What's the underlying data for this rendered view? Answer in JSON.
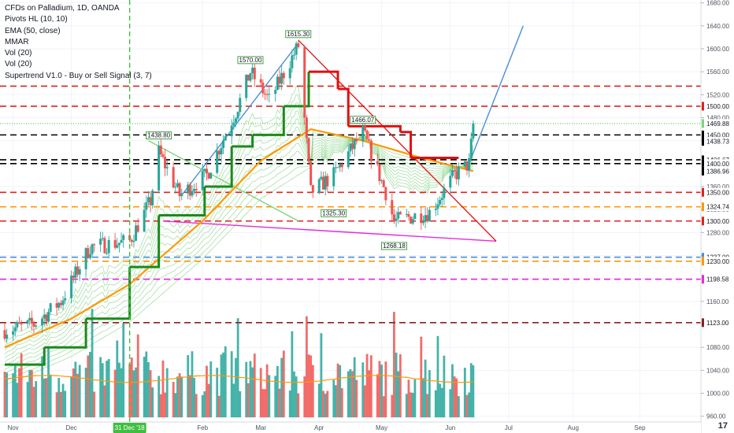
{
  "legend": {
    "symbol": "CFDs on Palladium, 1D, OANDA",
    "indicators": [
      "Pivots HL (10, 10)",
      "EMA (50, close)",
      "MMAR",
      "Vol (20)",
      "Vol (20)",
      "Supertrend V1.0 - Buy or Sell Signal (3, 7)"
    ]
  },
  "colors": {
    "up": "#26a69a",
    "down": "#ef5350",
    "ema": "#ff9800",
    "supertrend_up": "#1b8a1b",
    "supertrend_down": "#e01010",
    "ribbon": "#8bd48b",
    "support": "#e62b7e",
    "trend_blue": "#4a8fd8",
    "green_line": "#5cd05c",
    "axis": "#50535e"
  },
  "chart_data": {
    "type": "candlestick",
    "title": "CFDs on Palladium, 1D, OANDA",
    "y_axis": {
      "range": [
        950,
        1685
      ],
      "ticks": [
        960,
        1000,
        1040,
        1080,
        1120,
        1160,
        1200,
        1240,
        1280,
        1320,
        1360,
        1400,
        1440,
        1480,
        1520,
        1560,
        1600,
        1640,
        1680
      ]
    },
    "x_axis": {
      "start_date": "2018-11-01",
      "end_date": "2019-09-20",
      "labels": [
        {
          "date": "2018-11-05",
          "text": "Nov"
        },
        {
          "date": "2018-12-03",
          "text": "Dec"
        },
        {
          "date": "2019-02-04",
          "text": "Feb"
        },
        {
          "date": "2019-03-04",
          "text": "Mar"
        },
        {
          "date": "2019-04-01",
          "text": "Apr"
        },
        {
          "date": "2019-05-01",
          "text": "May"
        },
        {
          "date": "2019-06-03",
          "text": "Jun"
        },
        {
          "date": "2019-07-01",
          "text": "Jul"
        },
        {
          "date": "2019-08-01",
          "text": "Aug"
        },
        {
          "date": "2019-09-02",
          "text": "Sep"
        }
      ],
      "highlight": {
        "date": "2018-12-31",
        "text": "31 Dec '18"
      }
    },
    "horizontal_levels": [
      {
        "price": 1500.0,
        "label": "1500.00",
        "color": "#e02020",
        "style": "dashed"
      },
      {
        "price": 1469.88,
        "label": "1469.88",
        "color": "#7bd67b",
        "style": "dotted"
      },
      {
        "price": 1450.0,
        "label": "1450.00",
        "color": "#000000",
        "style": "dashed"
      },
      {
        "price": 1438.73,
        "label": "1438.73",
        "color": "#000000",
        "style": "none"
      },
      {
        "price": 1406.67,
        "label": "1406.67",
        "color": "#000000",
        "style": "dashed"
      },
      {
        "price": 1400.0,
        "label": "1400.00",
        "color": "#000000",
        "style": "dashed"
      },
      {
        "price": 1386.96,
        "label": "1386.96",
        "color": "#000000",
        "style": "none"
      },
      {
        "price": 1350.0,
        "label": "1350.00",
        "color": "#e02020",
        "style": "dashed"
      },
      {
        "price": 1324.74,
        "label": "1324.74",
        "color": "#ff9800",
        "style": "dashed"
      },
      {
        "price": 1300.0,
        "label": "1300.00",
        "color": "#e02020",
        "style": "dashed"
      },
      {
        "price": 1237.0,
        "label": "1237.00",
        "color": "#4a8fd8",
        "style": "dashed"
      },
      {
        "price": 1230.0,
        "label": "1230.00",
        "color": "#ff9800",
        "style": "dashed"
      },
      {
        "price": 1198.58,
        "label": "1198.58",
        "color": "#e62bd9",
        "style": "dashed"
      },
      {
        "price": 1123.0,
        "label": "1123.00",
        "color": "#8b2020",
        "style": "dashed"
      },
      {
        "price": 1535.0,
        "label": "",
        "color": "#e02020",
        "style": "dashed"
      }
    ],
    "pivot_labels": [
      {
        "date": "2019-03-22",
        "price": 1615.3,
        "text": "1615.30",
        "side": "high"
      },
      {
        "date": "2019-02-27",
        "price": 1570.0,
        "text": "1570.00",
        "side": "high"
      },
      {
        "date": "2019-01-14",
        "price": 1438.8,
        "text": "1438.80",
        "side": "high"
      },
      {
        "date": "2019-04-22",
        "price": 1466.07,
        "text": "1466.07",
        "side": "high"
      },
      {
        "date": "2019-04-08",
        "price": 1325.3,
        "text": "1325.30",
        "side": "low"
      },
      {
        "date": "2019-05-07",
        "price": 1268.18,
        "text": "1268.18",
        "side": "low"
      }
    ],
    "ohlc_anchors": [
      {
        "date": "2018-11-01",
        "close": 1110
      },
      {
        "date": "2018-11-15",
        "close": 1120
      },
      {
        "date": "2018-11-28",
        "close": 1160
      },
      {
        "date": "2018-12-12",
        "close": 1255
      },
      {
        "date": "2018-12-31",
        "close": 1265
      },
      {
        "date": "2019-01-10",
        "close": 1335
      },
      {
        "date": "2019-01-14",
        "close": 1420
      },
      {
        "date": "2019-01-24",
        "close": 1345
      },
      {
        "date": "2019-02-06",
        "close": 1380
      },
      {
        "date": "2019-02-20",
        "close": 1490
      },
      {
        "date": "2019-02-27",
        "close": 1560
      },
      {
        "date": "2019-03-08",
        "close": 1510
      },
      {
        "date": "2019-03-22",
        "close": 1605
      },
      {
        "date": "2019-03-28",
        "close": 1350
      },
      {
        "date": "2019-04-08",
        "close": 1380
      },
      {
        "date": "2019-04-22",
        "close": 1455
      },
      {
        "date": "2019-05-03",
        "close": 1350
      },
      {
        "date": "2019-05-07",
        "close": 1300
      },
      {
        "date": "2019-05-24",
        "close": 1315
      },
      {
        "date": "2019-06-05",
        "close": 1380
      },
      {
        "date": "2019-06-12",
        "close": 1400
      },
      {
        "date": "2019-06-14",
        "close": 1465
      }
    ],
    "ema_50": [
      {
        "date": "2018-11-01",
        "value": 1080
      },
      {
        "date": "2018-12-03",
        "value": 1130
      },
      {
        "date": "2018-12-31",
        "value": 1190
      },
      {
        "date": "2019-02-04",
        "value": 1300
      },
      {
        "date": "2019-03-04",
        "value": 1405
      },
      {
        "date": "2019-03-28",
        "value": 1460
      },
      {
        "date": "2019-04-22",
        "value": 1440
      },
      {
        "date": "2019-05-20",
        "value": 1410
      },
      {
        "date": "2019-06-14",
        "value": 1386.96
      }
    ],
    "supertrend": [
      {
        "date": "2018-11-01",
        "value": 1050,
        "trend": "up"
      },
      {
        "date": "2018-11-20",
        "value": 1080,
        "trend": "up"
      },
      {
        "date": "2018-12-10",
        "value": 1130,
        "trend": "up"
      },
      {
        "date": "2018-12-31",
        "value": 1220,
        "trend": "up"
      },
      {
        "date": "2019-01-14",
        "value": 1310,
        "trend": "up"
      },
      {
        "date": "2019-01-25",
        "value": 1310,
        "trend": "up"
      },
      {
        "date": "2019-02-05",
        "value": 1360,
        "trend": "up"
      },
      {
        "date": "2019-02-18",
        "value": 1430,
        "trend": "up"
      },
      {
        "date": "2019-02-28",
        "value": 1450,
        "trend": "up"
      },
      {
        "date": "2019-03-15",
        "value": 1500,
        "trend": "up"
      },
      {
        "date": "2019-03-27",
        "value": 1560,
        "trend": "down"
      },
      {
        "date": "2019-04-10",
        "value": 1530,
        "trend": "down"
      },
      {
        "date": "2019-04-15",
        "value": 1465,
        "trend": "down"
      },
      {
        "date": "2019-05-10",
        "value": 1455,
        "trend": "down"
      },
      {
        "date": "2019-05-15",
        "value": 1410,
        "trend": "down"
      },
      {
        "date": "2019-06-07",
        "value": 1410,
        "trend": "down"
      }
    ],
    "trendlines": [
      {
        "from": {
          "date": "2019-01-16",
          "price": 1300
        },
        "to": {
          "date": "2019-06-25",
          "price": 1265
        },
        "color": "#e62bd9"
      },
      {
        "from": {
          "date": "2019-03-22",
          "price": 1615
        },
        "to": {
          "date": "2019-06-25",
          "price": 1265
        },
        "color": "#e02020"
      },
      {
        "from": {
          "date": "2019-01-25",
          "price": 1345
        },
        "to": {
          "date": "2019-03-22",
          "price": 1610
        },
        "color": "#4a8fd8"
      },
      {
        "from": {
          "date": "2019-06-12",
          "price": 1400
        },
        "to": {
          "date": "2019-07-08",
          "price": 1640
        },
        "color": "#4a8fd8"
      },
      {
        "from": {
          "date": "2019-01-09",
          "price": 1440
        },
        "to": {
          "date": "2019-03-22",
          "price": 1300
        },
        "color": "#7bd67b"
      }
    ],
    "volume_panel": {
      "top_price_equiv": 1120,
      "bottom_price_equiv": 958
    }
  },
  "logo": "17"
}
